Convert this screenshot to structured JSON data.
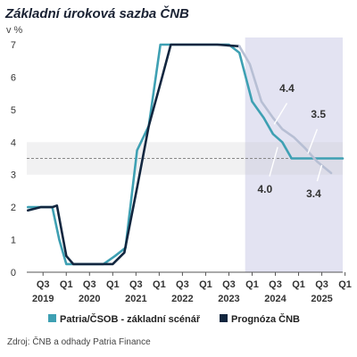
{
  "chart_data": {
    "type": "line",
    "title": "Základní úroková sazba ČNB",
    "unit_label": "v %",
    "source": "Zdroj: ČNB a odhady Patria Finance",
    "ylim": [
      0,
      7
    ],
    "yticks": [
      "0",
      "1",
      "2",
      "3",
      "4",
      "5",
      "6",
      "7"
    ],
    "xlim": [
      0.3,
      13.9
    ],
    "x_ticks": [
      {
        "q": "Q3",
        "year": "2019",
        "x": 1
      },
      {
        "q": "Q1",
        "year": "",
        "x": 2
      },
      {
        "q": "Q3",
        "year": "2020",
        "x": 3
      },
      {
        "q": "Q1",
        "year": "",
        "x": 4
      },
      {
        "q": "Q3",
        "year": "2021",
        "x": 5
      },
      {
        "q": "Q1",
        "year": "",
        "x": 6
      },
      {
        "q": "Q3",
        "year": "2022",
        "x": 7
      },
      {
        "q": "Q1",
        "year": "",
        "x": 8
      },
      {
        "q": "Q3",
        "year": "2023",
        "x": 9
      },
      {
        "q": "Q1",
        "year": "",
        "x": 10
      },
      {
        "q": "Q3",
        "year": "2024",
        "x": 11
      },
      {
        "q": "Q1",
        "year": "",
        "x": 12
      },
      {
        "q": "Q3",
        "year": "2025",
        "x": 13
      },
      {
        "q": "Q1",
        "year": "",
        "x": 14
      }
    ],
    "forecast_region": {
      "x_start": 9.7,
      "x_end": 13.9
    },
    "neutral_band": {
      "y_low": 3.0,
      "y_high": 4.0,
      "mid": 3.5
    },
    "series": [
      {
        "name": "Patria/ČSOB - základní scénář",
        "color": "#3ea0b3",
        "points": [
          [
            0.35,
            2.0
          ],
          [
            0.9,
            2.0
          ],
          [
            1.1,
            2.0
          ],
          [
            1.4,
            2.0
          ],
          [
            1.7,
            1.0
          ],
          [
            2.0,
            0.25
          ],
          [
            2.6,
            0.25
          ],
          [
            3.1,
            0.25
          ],
          [
            3.6,
            0.25
          ],
          [
            4.1,
            0.5
          ],
          [
            4.55,
            0.75
          ],
          [
            5.05,
            3.75
          ],
          [
            5.55,
            4.5
          ],
          [
            6.05,
            7.0
          ],
          [
            6.8,
            7.0
          ],
          [
            7.6,
            7.0
          ],
          [
            8.4,
            7.0
          ],
          [
            9.0,
            7.0
          ],
          [
            9.45,
            6.75
          ],
          [
            10.0,
            5.25
          ],
          [
            10.5,
            4.75
          ],
          [
            10.9,
            4.25
          ],
          [
            11.3,
            4.0
          ],
          [
            11.7,
            3.5
          ],
          [
            12.7,
            3.5
          ],
          [
            13.5,
            3.5
          ],
          [
            13.9,
            3.5
          ]
        ]
      },
      {
        "name": "Prognóza ČNB",
        "color": "#12263f",
        "points": [
          [
            0.35,
            1.9
          ],
          [
            0.9,
            2.0
          ],
          [
            1.4,
            2.0
          ],
          [
            1.6,
            2.05
          ],
          [
            2.0,
            0.5
          ],
          [
            2.3,
            0.25
          ],
          [
            3.1,
            0.25
          ],
          [
            3.6,
            0.25
          ],
          [
            4.0,
            0.25
          ],
          [
            4.5,
            0.6
          ],
          [
            5.05,
            2.6
          ],
          [
            5.55,
            4.5
          ],
          [
            6.05,
            5.8
          ],
          [
            6.5,
            7.0
          ],
          [
            7.5,
            7.0
          ],
          [
            8.5,
            7.0
          ],
          [
            9.45,
            6.95
          ]
        ]
      },
      {
        "name": "",
        "color": "#b7bfd4",
        "points": [
          [
            9.45,
            6.95
          ],
          [
            9.9,
            6.4
          ],
          [
            10.4,
            5.25
          ],
          [
            10.9,
            4.75
          ],
          [
            11.3,
            4.4
          ],
          [
            11.8,
            4.15
          ],
          [
            12.3,
            3.8
          ],
          [
            12.8,
            3.4
          ],
          [
            13.4,
            3.05
          ]
        ]
      }
    ],
    "annotations": [
      {
        "text": "4.4",
        "x": 11.5,
        "y": 5.55,
        "lx1": 10.95,
        "ly1": 4.55,
        "lx2": 11.5,
        "ly2": 5.2
      },
      {
        "text": "3.5",
        "x": 12.85,
        "y": 4.75,
        "lx1": 12.4,
        "ly1": 3.65,
        "lx2": 12.8,
        "ly2": 4.4
      },
      {
        "text": "4.0",
        "x": 10.55,
        "y": 2.45,
        "lx1": 11.1,
        "ly1": 3.85,
        "lx2": 10.75,
        "ly2": 2.95
      },
      {
        "text": "3.4",
        "x": 12.65,
        "y": 2.3,
        "lx1": 13.0,
        "ly1": 3.3,
        "lx2": 12.8,
        "ly2": 2.8
      }
    ],
    "legend": [
      {
        "label": "Patria/ČSOB - základní scénář",
        "color": "#3ea0b3"
      },
      {
        "label": "Prognóza ČNB",
        "color": "#12263f"
      }
    ],
    "grid": false,
    "legend_position": "bottom"
  }
}
